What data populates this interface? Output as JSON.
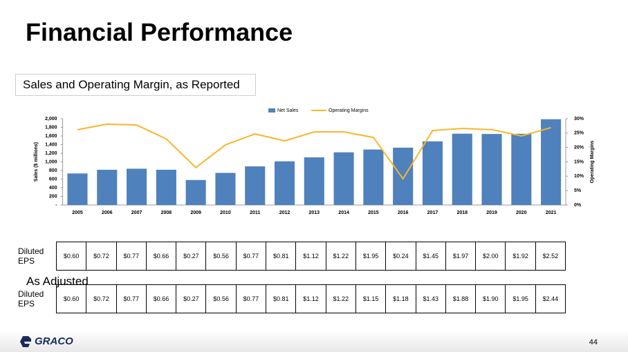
{
  "header": {
    "title": "Financial Performance",
    "subtitle": "Sales and Operating Margin, as Reported"
  },
  "chart_data": {
    "type": "bar-line",
    "y_label": "Sales ($ millions)",
    "y2_label": "Operating Margins",
    "categories": [
      "2005",
      "2006",
      "2007",
      "2008",
      "2009",
      "2010",
      "2011",
      "2012",
      "2013",
      "2014",
      "2015",
      "2016",
      "2017",
      "2018",
      "2019",
      "2020",
      "2021"
    ],
    "series": [
      {
        "name": "Net Sales",
        "color": "#4f81bd",
        "values": [
          731,
          816,
          841,
          817,
          579,
          744,
          895,
          1012,
          1104,
          1221,
          1286,
          1329,
          1475,
          1653,
          1646,
          1650,
          1988
        ]
      },
      {
        "name": "Operating Margins",
        "color": "#f8b62b",
        "axis": "y2",
        "values": [
          26.2,
          28.1,
          27.8,
          23.0,
          13.0,
          20.9,
          24.7,
          22.3,
          25.4,
          25.4,
          23.5,
          9.1,
          25.9,
          26.6,
          26.2,
          24.0,
          26.9
        ]
      }
    ],
    "ylim": [
      0,
      2000
    ],
    "yticks": [
      {
        "value": 0,
        "label": "-"
      },
      200,
      400,
      600,
      800,
      {
        "value": 1000,
        "label": "1,000"
      },
      {
        "value": 1200,
        "label": "1,200"
      },
      {
        "value": 1400,
        "label": "1,400"
      },
      {
        "value": 1600,
        "label": "1,600"
      },
      {
        "value": 1800,
        "label": "1,800"
      },
      {
        "value": 2000,
        "label": "2,000"
      }
    ],
    "y2lim": [
      0,
      30
    ],
    "y2ticks": [
      {
        "value": 0,
        "label": "0%"
      },
      {
        "value": 5,
        "label": "5%"
      },
      {
        "value": 10,
        "label": "10%"
      },
      {
        "value": 15,
        "label": "15%"
      },
      {
        "value": 20,
        "label": "20%"
      },
      {
        "value": 25,
        "label": "25%"
      },
      {
        "value": 30,
        "label": "30%"
      }
    ],
    "legend": "top"
  },
  "tables": [
    {
      "label": "Diluted EPS",
      "values": [
        "$0.60",
        "$0.72",
        "$0.77",
        "$0.66",
        "$0.27",
        "$0.56",
        "$0.77",
        "$0.81",
        "$1.12",
        "$1.22",
        "$1.95",
        "$0.24",
        "$1.45",
        "$1.97",
        "$2.00",
        "$1.92",
        "$2.52"
      ]
    },
    {
      "heading": "As Adjusted",
      "label": "Diluted EPS",
      "values": [
        "$0.60",
        "$0.72",
        "$0.77",
        "$0.66",
        "$0.27",
        "$0.56",
        "$0.77",
        "$0.81",
        "$1.12",
        "$1.22",
        "$1.15",
        "$1.18",
        "$1.43",
        "$1.88",
        "$1.90",
        "$1.95",
        "$2.44"
      ]
    }
  ],
  "footer": {
    "logo": "GRACO",
    "page": "44"
  }
}
